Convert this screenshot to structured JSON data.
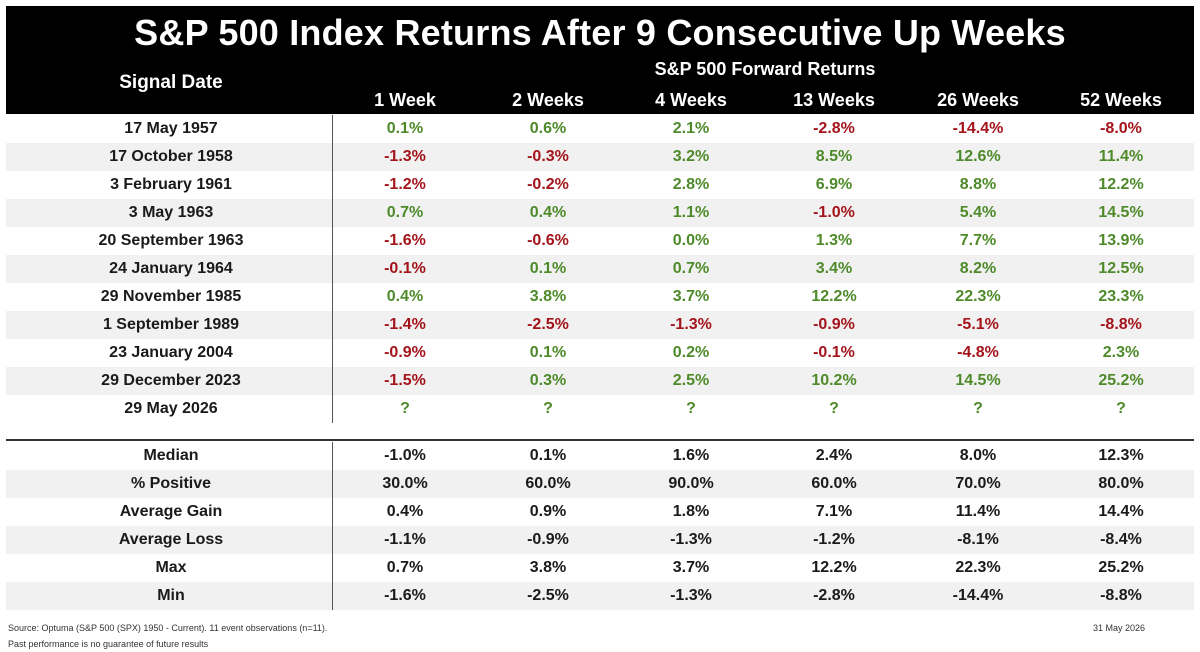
{
  "chart_data": {
    "type": "table",
    "title": "S&P 500 Index Returns After 9 Consecutive Up Weeks",
    "row_header": "Signal Date",
    "group_header": "S&P 500 Forward Returns",
    "columns": [
      "1 Week",
      "2 Weeks",
      "4 Weeks",
      "13 Weeks",
      "26 Weeks",
      "52 Weeks"
    ],
    "rows": [
      {
        "label": "17 May 1957",
        "values": [
          "0.1%",
          "0.6%",
          "2.1%",
          "-2.8%",
          "-14.4%",
          "-8.0%"
        ]
      },
      {
        "label": "17 October 1958",
        "values": [
          "-1.3%",
          "-0.3%",
          "3.2%",
          "8.5%",
          "12.6%",
          "11.4%"
        ]
      },
      {
        "label": "3 February 1961",
        "values": [
          "-1.2%",
          "-0.2%",
          "2.8%",
          "6.9%",
          "8.8%",
          "12.2%"
        ]
      },
      {
        "label": "3 May 1963",
        "values": [
          "0.7%",
          "0.4%",
          "1.1%",
          "-1.0%",
          "5.4%",
          "14.5%"
        ]
      },
      {
        "label": "20 September 1963",
        "values": [
          "-1.6%",
          "-0.6%",
          "0.0%",
          "1.3%",
          "7.7%",
          "13.9%"
        ]
      },
      {
        "label": "24 January 1964",
        "values": [
          "-0.1%",
          "0.1%",
          "0.7%",
          "3.4%",
          "8.2%",
          "12.5%"
        ]
      },
      {
        "label": "29 November 1985",
        "values": [
          "0.4%",
          "3.8%",
          "3.7%",
          "12.2%",
          "22.3%",
          "23.3%"
        ]
      },
      {
        "label": "1 September 1989",
        "values": [
          "-1.4%",
          "-2.5%",
          "-1.3%",
          "-0.9%",
          "-5.1%",
          "-8.8%"
        ]
      },
      {
        "label": "23 January 2004",
        "values": [
          "-0.9%",
          "0.1%",
          "0.2%",
          "-0.1%",
          "-4.8%",
          "2.3%"
        ]
      },
      {
        "label": "29 December 2023",
        "values": [
          "-1.5%",
          "0.3%",
          "2.5%",
          "10.2%",
          "14.5%",
          "25.2%"
        ]
      },
      {
        "label": "29 May 2026",
        "values": [
          "?",
          "?",
          "?",
          "?",
          "?",
          "?"
        ]
      }
    ],
    "summary": [
      {
        "label": "Median",
        "values": [
          "-1.0%",
          "0.1%",
          "1.6%",
          "2.4%",
          "8.0%",
          "12.3%"
        ]
      },
      {
        "label": "% Positive",
        "values": [
          "30.0%",
          "60.0%",
          "90.0%",
          "60.0%",
          "70.0%",
          "80.0%"
        ]
      },
      {
        "label": "Average Gain",
        "values": [
          "0.4%",
          "0.9%",
          "1.8%",
          "7.1%",
          "11.4%",
          "14.4%"
        ]
      },
      {
        "label": "Average Loss",
        "values": [
          "-1.1%",
          "-0.9%",
          "-1.3%",
          "-1.2%",
          "-8.1%",
          "-8.4%"
        ]
      },
      {
        "label": "Max",
        "values": [
          "0.7%",
          "3.8%",
          "3.7%",
          "12.2%",
          "22.3%",
          "25.2%"
        ]
      },
      {
        "label": "Min",
        "values": [
          "-1.6%",
          "-2.5%",
          "-1.3%",
          "-2.8%",
          "-14.4%",
          "-8.8%"
        ]
      }
    ],
    "colors": {
      "positive": "#4e8a2a",
      "negative": "#a3141b",
      "header_bg": "#000000",
      "shade": "#f1f1f1"
    }
  },
  "footer": {
    "source": "Source: Optuma (S&P 500 (SPX) 1950 - Current). 11 event observations (n=11).",
    "disclaimer": "Past performance is no guarantee of future results",
    "date": "31 May 2026"
  }
}
